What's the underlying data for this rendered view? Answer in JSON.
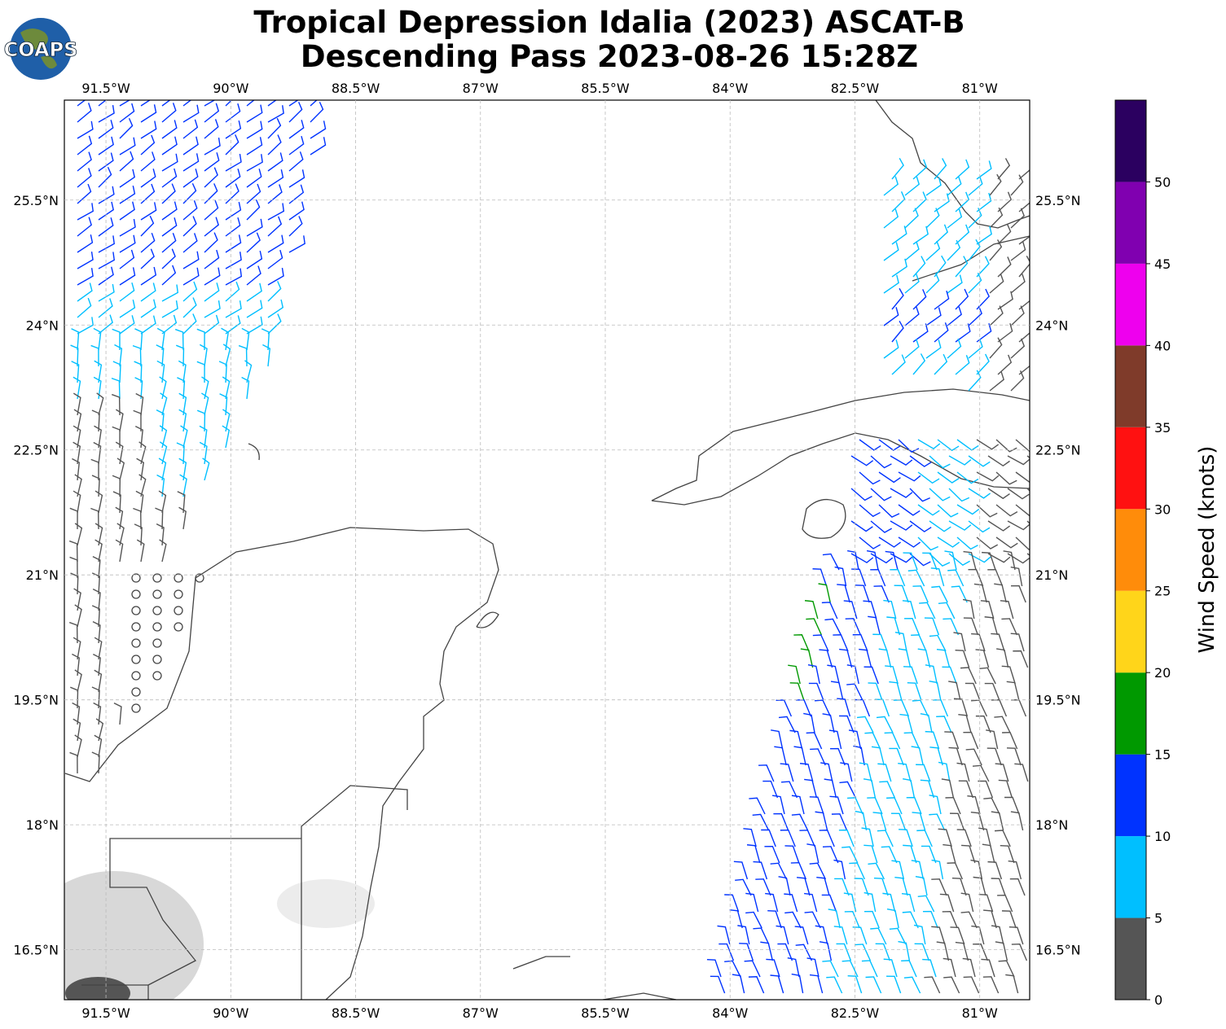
{
  "title": [
    "Tropical Depression Idalia (2023) ASCAT-B",
    "Descending Pass 2023-08-26 15:28Z"
  ],
  "logo": "COAPS",
  "map": {
    "xlim": [
      -92.0,
      -80.4
    ],
    "ylim": [
      15.9,
      26.7
    ],
    "xticks": [
      {
        "value": -91.5,
        "label": "91.5°W"
      },
      {
        "value": -90,
        "label": "90°W"
      },
      {
        "value": -88.5,
        "label": "88.5°W"
      },
      {
        "value": -87,
        "label": "87°W"
      },
      {
        "value": -85.5,
        "label": "85.5°W"
      },
      {
        "value": -84,
        "label": "84°W"
      },
      {
        "value": -82.5,
        "label": "82.5°W"
      },
      {
        "value": -81,
        "label": "81°W"
      }
    ],
    "yticks": [
      {
        "value": 25.5,
        "label": "25.5°N"
      },
      {
        "value": 24,
        "label": "24°N"
      },
      {
        "value": 22.5,
        "label": "22.5°N"
      },
      {
        "value": 21,
        "label": "21°N"
      },
      {
        "value": 19.5,
        "label": "19.5°N"
      },
      {
        "value": 18,
        "label": "18°N"
      },
      {
        "value": 16.5,
        "label": "16.5°N"
      }
    ]
  },
  "colorbar": {
    "label": "Wind Speed (knots)",
    "bounds": [
      0,
      5,
      10,
      15,
      20,
      25,
      30,
      35,
      40,
      45,
      50,
      55
    ],
    "colors": [
      "#555555",
      "#00bfff",
      "#0033ff",
      "#009900",
      "#ffd51a",
      "#ff8c0a",
      "#ff1111",
      "#7f3b2a",
      "#ee00ee",
      "#8000b0",
      "#2b0060"
    ],
    "ticks": [
      0,
      5,
      10,
      15,
      20,
      25,
      30,
      35,
      40,
      45,
      50
    ]
  }
}
